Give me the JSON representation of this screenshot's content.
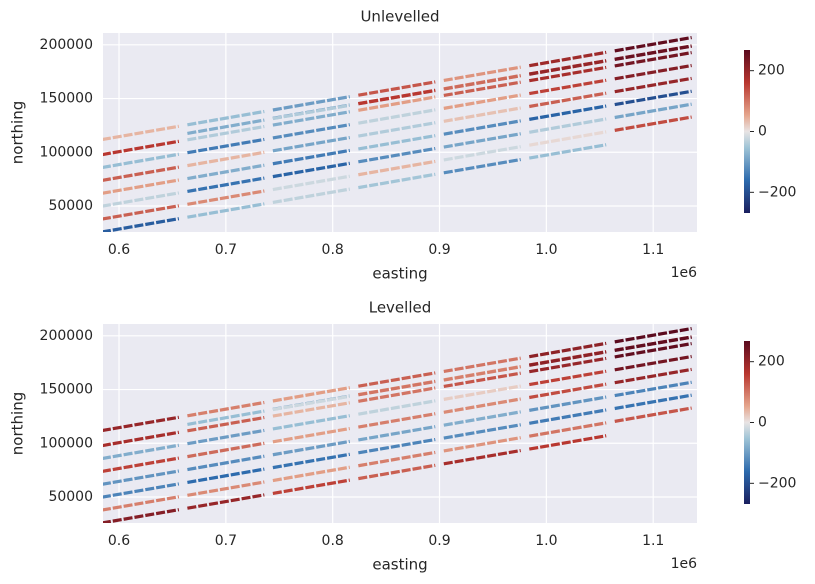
{
  "chart_data": [
    {
      "type": "scatter",
      "title": "Unlevelled",
      "xlabel": "easting",
      "ylabel": "northing",
      "x_offset_label": "1e6",
      "xlim": [
        585000,
        1141000
      ],
      "ylim": [
        25800,
        211000
      ],
      "xticks": [
        {
          "value": 600000,
          "label": "0.6"
        },
        {
          "value": 700000,
          "label": "0.7"
        },
        {
          "value": 800000,
          "label": "0.8"
        },
        {
          "value": 900000,
          "label": "0.9"
        },
        {
          "value": 1000000,
          "label": "1.0"
        },
        {
          "value": 1100000,
          "label": "1.1"
        }
      ],
      "yticks": [
        50000,
        100000,
        150000,
        200000
      ],
      "grid": true,
      "clim": [
        -268,
        268
      ],
      "cticks": [
        {
          "value": -200,
          "label": "−200"
        },
        0,
        200
      ],
      "lines": [
        {
          "x": [
            620000,
            700000,
            780000,
            860000,
            940000,
            1020000
          ],
          "y": [
            32000,
            45760,
            59520,
            73280,
            87040,
            100800
          ],
          "values": [
            -180,
            -60,
            -30,
            -50,
            -120,
            -60
          ]
        },
        {
          "x": [
            620000,
            700000,
            780000,
            860000,
            940000,
            1020000,
            1100000
          ],
          "y": [
            44000,
            57760,
            71520,
            85280,
            99040,
            112800,
            126560
          ],
          "values": [
            120,
            80,
            -20,
            40,
            -20,
            10,
            140
          ]
        },
        {
          "x": [
            620000,
            700000,
            780000,
            860000,
            940000,
            1020000,
            1100000
          ],
          "y": [
            56000,
            69760,
            83520,
            97280,
            111040,
            124800,
            138560
          ],
          "values": [
            -30,
            -150,
            -170,
            -120,
            -90,
            -40,
            -90
          ]
        },
        {
          "x": [
            620000,
            700000,
            780000,
            860000,
            940000,
            1020000,
            1100000
          ],
          "y": [
            68000,
            81760,
            95520,
            109280,
            123040,
            136800,
            150560
          ],
          "values": [
            60,
            -80,
            -140,
            -60,
            -120,
            -170,
            -200
          ]
        },
        {
          "x": [
            620000,
            700000,
            780000,
            860000,
            940000,
            1020000,
            1100000
          ],
          "y": [
            80000,
            93760,
            107520,
            121280,
            135040,
            148800,
            162560
          ],
          "values": [
            120,
            40,
            -90,
            -40,
            30,
            120,
            200
          ]
        },
        {
          "x": [
            620000,
            700000,
            780000,
            860000,
            940000,
            1020000,
            1100000
          ],
          "y": [
            92000,
            105760,
            119520,
            133280,
            147040,
            160800,
            174560
          ],
          "values": [
            -60,
            -140,
            -120,
            -30,
            60,
            150,
            220
          ]
        },
        {
          "x": [
            620000,
            700000,
            780000,
            860000,
            940000,
            1020000,
            1100000
          ],
          "y": [
            104000,
            117760,
            131520,
            145280,
            159040,
            172800,
            186560
          ],
          "values": [
            160,
            -40,
            -80,
            60,
            120,
            180,
            240
          ]
        },
        {
          "x": [
            620000,
            700000,
            780000,
            860000,
            940000,
            1020000,
            1100000
          ],
          "y": [
            118000,
            131760,
            145520,
            159280,
            173040,
            186800,
            200560
          ],
          "values": [
            40,
            -60,
            -100,
            130,
            70,
            190,
            260
          ]
        },
        {
          "x": [
            780000,
            860000,
            940000,
            1020000,
            1100000
          ],
          "y": [
            137760,
            151520,
            165280,
            179040,
            192800
          ],
          "values": [
            -120,
            150,
            80,
            170,
            230
          ]
        },
        {
          "x": [
            700000,
            780000,
            860000,
            940000,
            1020000,
            1100000
          ],
          "y": [
            123760,
            137520,
            151280,
            165040,
            178800,
            192560
          ],
          "values": [
            -80,
            -40,
            160,
            110,
            200,
            250
          ]
        }
      ]
    },
    {
      "type": "scatter",
      "title": "Levelled",
      "xlabel": "easting",
      "ylabel": "northing",
      "x_offset_label": "1e6",
      "xlim": [
        585000,
        1141000
      ],
      "ylim": [
        25800,
        211000
      ],
      "xticks": [
        {
          "value": 600000,
          "label": "0.6"
        },
        {
          "value": 700000,
          "label": "0.7"
        },
        {
          "value": 800000,
          "label": "0.8"
        },
        {
          "value": 900000,
          "label": "0.9"
        },
        {
          "value": 1000000,
          "label": "1.0"
        },
        {
          "value": 1100000,
          "label": "1.1"
        }
      ],
      "yticks": [
        50000,
        100000,
        150000,
        200000
      ],
      "grid": true,
      "clim": [
        -268,
        268
      ],
      "cticks": [
        {
          "value": -200,
          "label": "−200"
        },
        0,
        200
      ],
      "lines": [
        {
          "x": [
            620000,
            700000,
            780000,
            860000,
            940000,
            1020000
          ],
          "y": [
            32000,
            45760,
            59520,
            73280,
            87040,
            100800
          ],
          "values": [
            220,
            200,
            150,
            120,
            180,
            160
          ]
        },
        {
          "x": [
            620000,
            700000,
            780000,
            860000,
            940000,
            1020000,
            1100000
          ],
          "y": [
            44000,
            57760,
            71520,
            85280,
            99040,
            112800,
            126560
          ],
          "values": [
            90,
            80,
            60,
            90,
            70,
            100,
            130
          ]
        },
        {
          "x": [
            620000,
            700000,
            780000,
            860000,
            940000,
            1020000,
            1100000
          ],
          "y": [
            56000,
            69760,
            83520,
            97280,
            111040,
            124800,
            138560
          ],
          "values": [
            -130,
            -160,
            -150,
            -130,
            -120,
            -140,
            -150
          ]
        },
        {
          "x": [
            620000,
            700000,
            780000,
            860000,
            940000,
            1020000,
            1100000
          ],
          "y": [
            68000,
            81760,
            95520,
            109280,
            123040,
            136800,
            150560
          ],
          "values": [
            -110,
            -120,
            -100,
            -90,
            -80,
            -110,
            -130
          ]
        },
        {
          "x": [
            620000,
            700000,
            780000,
            860000,
            940000,
            1020000,
            1100000
          ],
          "y": [
            80000,
            93760,
            107520,
            121280,
            135040,
            148800,
            162560
          ],
          "values": [
            150,
            110,
            60,
            90,
            80,
            140,
            200
          ]
        },
        {
          "x": [
            620000,
            700000,
            780000,
            860000,
            940000,
            1020000,
            1100000
          ],
          "y": [
            92000,
            105760,
            119520,
            133280,
            147040,
            160800,
            174560
          ],
          "values": [
            -80,
            -100,
            -60,
            -30,
            20,
            150,
            240
          ]
        },
        {
          "x": [
            620000,
            700000,
            780000,
            860000,
            940000,
            1020000,
            1100000
          ],
          "y": [
            104000,
            117760,
            131520,
            145280,
            159040,
            172800,
            186560
          ],
          "values": [
            180,
            120,
            40,
            100,
            130,
            200,
            260
          ]
        },
        {
          "x": [
            620000,
            700000,
            780000,
            860000,
            940000,
            1020000,
            1100000
          ],
          "y": [
            118000,
            131760,
            145520,
            159280,
            173040,
            186800,
            200560
          ],
          "values": [
            200,
            90,
            60,
            120,
            100,
            210,
            270
          ]
        },
        {
          "x": [
            780000,
            860000,
            940000,
            1020000,
            1100000
          ],
          "y": [
            137760,
            151520,
            165280,
            179040,
            192800
          ],
          "values": [
            -100,
            60,
            40,
            150,
            240
          ]
        },
        {
          "x": [
            700000,
            780000,
            860000,
            940000,
            1020000,
            1100000
          ],
          "y": [
            123760,
            137520,
            151280,
            165040,
            178800,
            192560
          ],
          "values": [
            -60,
            -20,
            100,
            90,
            210,
            260
          ]
        }
      ]
    }
  ]
}
